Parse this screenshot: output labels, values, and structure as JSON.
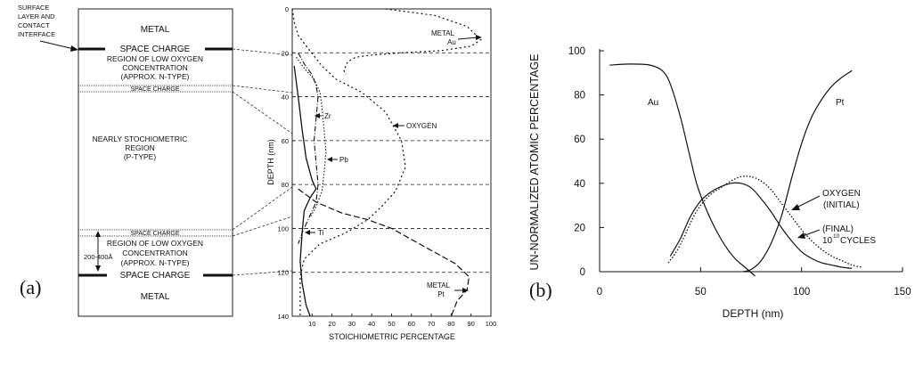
{
  "panel_a": {
    "label": "(a)",
    "callout": [
      "SURFACE",
      "LAYER AND",
      "CONTACT",
      "INTERFACE"
    ],
    "layers": {
      "metal_top": "METAL",
      "space_charge_1": "SPACE CHARGE",
      "low_oxygen_1": [
        "REGION OF LOW OXYGEN",
        "CONCENTRATION",
        "(APPROX. N-TYPE)"
      ],
      "space_charge_2": "SPACE CHARGE",
      "stoichiometric": [
        "NEARLY STOCHIOMETRIC",
        "REGION",
        "(P-TYPE)"
      ],
      "space_charge_3": "SPACE CHARGE",
      "low_oxygen_2": [
        "REGION OF LOW OXYGEN",
        "CONCENTRATION",
        "(APPROX. N-TYPE)"
      ],
      "space_charge_4": "SPACE CHARGE",
      "metal_bottom": "METAL"
    },
    "thickness_label": "200-400Å"
  },
  "profile": {
    "ylabel": "DEPTH (nm)",
    "xlabel": "STOICHIOMETRIC PERCENTAGE",
    "yticks": [
      "0",
      "20",
      "40",
      "60",
      "80",
      "100",
      "120",
      "140"
    ],
    "xticks": [
      "10",
      "20",
      "30",
      "40",
      "50",
      "60",
      "70",
      "80",
      "90",
      "100"
    ],
    "annotations": {
      "metal_au": [
        "METAL",
        "Au"
      ],
      "zr": "Zr",
      "oxygen": "OXYGEN",
      "pb": "Pb",
      "ti": "Ti",
      "metal_pt": [
        "METAL",
        "Pt"
      ]
    }
  },
  "chart_data": [
    {
      "type": "line",
      "orientation": "depth-vertical",
      "xlabel": "STOICHIOMETRIC PERCENTAGE",
      "ylabel": "DEPTH (nm)",
      "xlim": [
        0,
        100
      ],
      "ylim": [
        140,
        0
      ],
      "series": [
        {
          "name": "Au",
          "points": [
            [
              47,
              0
            ],
            [
              72,
              3
            ],
            [
              88,
              8
            ],
            [
              95,
              14
            ],
            [
              90,
              17
            ],
            [
              75,
              19
            ],
            [
              55,
              20
            ],
            [
              40,
              21
            ],
            [
              32,
              22
            ],
            [
              28,
              24
            ],
            [
              26,
              28
            ],
            [
              27,
              30
            ]
          ]
        },
        {
          "name": "OXYGEN",
          "points": [
            [
              0,
              0
            ],
            [
              1,
              6
            ],
            [
              3,
              12
            ],
            [
              8,
              18
            ],
            [
              15,
              26
            ],
            [
              22,
              32
            ],
            [
              35,
              38
            ],
            [
              47,
              47
            ],
            [
              55,
              60
            ],
            [
              57,
              72
            ],
            [
              52,
              83
            ],
            [
              45,
              90
            ],
            [
              38,
              96
            ],
            [
              27,
              102
            ],
            [
              14,
              107
            ],
            [
              6,
              114
            ],
            [
              4,
              122
            ],
            [
              4,
              140
            ]
          ]
        },
        {
          "name": "Zr",
          "points": [
            [
              3,
              20
            ],
            [
              6,
              25
            ],
            [
              10,
              30
            ],
            [
              12,
              35
            ],
            [
              13,
              40
            ],
            [
              12,
              50
            ],
            [
              11,
              60
            ],
            [
              12,
              70
            ],
            [
              13,
              80
            ],
            [
              12,
              88
            ],
            [
              8,
              96
            ],
            [
              5,
              102
            ],
            [
              3,
              107
            ]
          ]
        },
        {
          "name": "Pb",
          "points": [
            [
              2,
              22
            ],
            [
              6,
              27
            ],
            [
              11,
              32
            ],
            [
              14,
              38
            ],
            [
              15,
              45
            ],
            [
              16,
              55
            ],
            [
              17,
              65
            ],
            [
              16,
              75
            ],
            [
              15,
              83
            ],
            [
              12,
              90
            ],
            [
              9,
              95
            ]
          ]
        },
        {
          "name": "Ti",
          "points": [
            [
              1,
              26
            ],
            [
              3,
              40
            ],
            [
              5,
              55
            ],
            [
              7,
              68
            ],
            [
              10,
              78
            ],
            [
              12,
              82
            ],
            [
              9,
              86
            ],
            [
              6,
              92
            ],
            [
              5,
              102
            ],
            [
              4,
              115
            ],
            [
              5,
              125
            ],
            [
              7,
              135
            ],
            [
              9,
              140
            ]
          ]
        },
        {
          "name": "Pt",
          "points": [
            [
              3,
              82
            ],
            [
              12,
              88
            ],
            [
              25,
              93
            ],
            [
              38,
              96
            ],
            [
              50,
              100
            ],
            [
              60,
              105
            ],
            [
              70,
              110
            ],
            [
              82,
              116
            ],
            [
              89,
              122
            ],
            [
              88,
              128
            ],
            [
              83,
              133
            ],
            [
              80,
              140
            ]
          ]
        }
      ]
    },
    {
      "type": "line",
      "xlabel": "DEPTH (nm)",
      "ylabel": "UN-NORMALIZED ATOMIC PERCENTAGE",
      "xlim": [
        0,
        150
      ],
      "ylim": [
        0,
        100
      ],
      "xticks": [
        "0",
        "50",
        "100",
        "150"
      ],
      "yticks": [
        "0",
        "20",
        "40",
        "60",
        "80",
        "100"
      ],
      "labels": {
        "au": "Au",
        "pt": "Pt",
        "oxygen_initial": [
          "OXYGEN",
          "(INITIAL)"
        ],
        "oxygen_final": [
          "(FINAL)",
          "10",
          "10",
          "CYCLES"
        ]
      },
      "series": [
        {
          "name": "Au",
          "points": [
            [
              5,
              93.5
            ],
            [
              15,
              94
            ],
            [
              25,
              93.5
            ],
            [
              31,
              91
            ],
            [
              35,
              85
            ],
            [
              40,
              70
            ],
            [
              44,
              55
            ],
            [
              48,
              40
            ],
            [
              52,
              30
            ],
            [
              57,
              20
            ],
            [
              62,
              12
            ],
            [
              67,
              6
            ],
            [
              72,
              2
            ],
            [
              77,
              -2
            ]
          ]
        },
        {
          "name": "Pt",
          "points": [
            [
              71,
              0
            ],
            [
              75,
              1
            ],
            [
              80,
              5
            ],
            [
              85,
              13
            ],
            [
              90,
              25
            ],
            [
              95,
              42
            ],
            [
              100,
              58
            ],
            [
              105,
              70
            ],
            [
              110,
              78
            ],
            [
              115,
              84
            ],
            [
              120,
              88
            ],
            [
              125,
              91
            ]
          ]
        },
        {
          "name": "OXYGEN (INITIAL)",
          "points": [
            [
              35,
              7
            ],
            [
              40,
              15
            ],
            [
              45,
              25
            ],
            [
              50,
              32
            ],
            [
              55,
              36
            ],
            [
              60,
              38.5
            ],
            [
              65,
              40
            ],
            [
              70,
              40
            ],
            [
              75,
              38
            ],
            [
              80,
              33
            ],
            [
              85,
              27
            ],
            [
              90,
              20
            ],
            [
              95,
              14
            ],
            [
              100,
              9
            ],
            [
              105,
              6
            ],
            [
              110,
              4
            ],
            [
              115,
              3
            ],
            [
              120,
              2
            ],
            [
              125,
              1.5
            ]
          ]
        },
        {
          "name": "(FINAL) 10^10 CYCLES",
          "points": [
            [
              34,
              4
            ],
            [
              38,
              9
            ],
            [
              42,
              16
            ],
            [
              46,
              24
            ],
            [
              50,
              30
            ],
            [
              55,
              35
            ],
            [
              60,
              38
            ],
            [
              65,
              41
            ],
            [
              70,
              43
            ],
            [
              75,
              43
            ],
            [
              80,
              41
            ],
            [
              85,
              37
            ],
            [
              90,
              31
            ],
            [
              95,
              25
            ],
            [
              100,
              19
            ],
            [
              105,
              14
            ],
            [
              110,
              10
            ],
            [
              115,
              7
            ],
            [
              120,
              5
            ],
            [
              125,
              3
            ],
            [
              130,
              2
            ]
          ]
        }
      ]
    }
  ]
}
